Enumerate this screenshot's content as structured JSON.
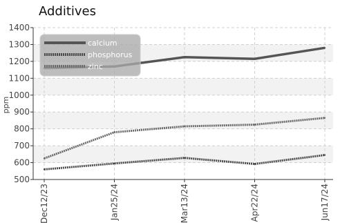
{
  "chart_data": {
    "type": "line",
    "title": "Additives",
    "xlabel": "",
    "ylabel": "ppm",
    "categories": [
      "Dec12/23",
      "Jan25/24",
      "Mar13/24",
      "Apr22/24",
      "Jun17/24"
    ],
    "ylim": [
      500,
      1400
    ],
    "yticks": [
      500,
      600,
      700,
      800,
      900,
      1000,
      1100,
      1200,
      1300,
      1400
    ],
    "grid": true,
    "legend_position": "top-left",
    "series": [
      {
        "name": "calcium",
        "values": [
          1160,
          1170,
          1225,
          1215,
          1280
        ],
        "color": "#555555",
        "style": "solid"
      },
      {
        "name": "phosphorus",
        "values": [
          560,
          595,
          628,
          592,
          645
        ],
        "color": "#4a4a4a",
        "style": "dotted"
      },
      {
        "name": "zinc",
        "values": [
          625,
          780,
          815,
          825,
          865
        ],
        "color": "#6a6a6a",
        "style": "dotted"
      }
    ]
  }
}
